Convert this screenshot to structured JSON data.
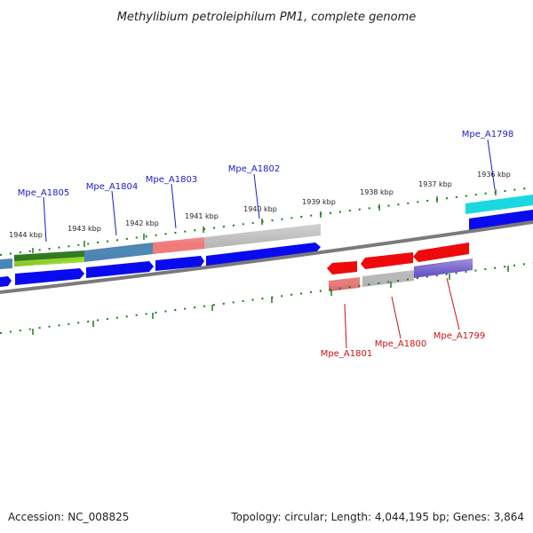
{
  "title": "Methylibium petroleiphilum PM1, complete genome",
  "footer": {
    "accession": "Accession: NC_008825",
    "stats": "Topology: circular; Length: 4,044,195 bp; Genes: 3,864"
  },
  "colors": {
    "forward_label": "#1a1acc",
    "reverse_label": "#cc1111",
    "backbone": "#7a7a7a",
    "ticks": "#1a7a1a",
    "cds_forward": "#0a0aee",
    "cds_reverse": "#ee0a0a"
  },
  "kbp_ticks": [
    "1936 kbp",
    "1937 kbp",
    "1938 kbp",
    "1939 kbp",
    "1940 kbp",
    "1941 kbp",
    "1942 kbp",
    "1943 kbp",
    "1944 kbp"
  ],
  "forward_genes": [
    "Mpe_A1798",
    "Mpe_A1802",
    "Mpe_A1803",
    "Mpe_A1804",
    "Mpe_A1805"
  ],
  "reverse_genes": [
    "Mpe_A1799",
    "Mpe_A1800",
    "Mpe_A1801"
  ]
}
